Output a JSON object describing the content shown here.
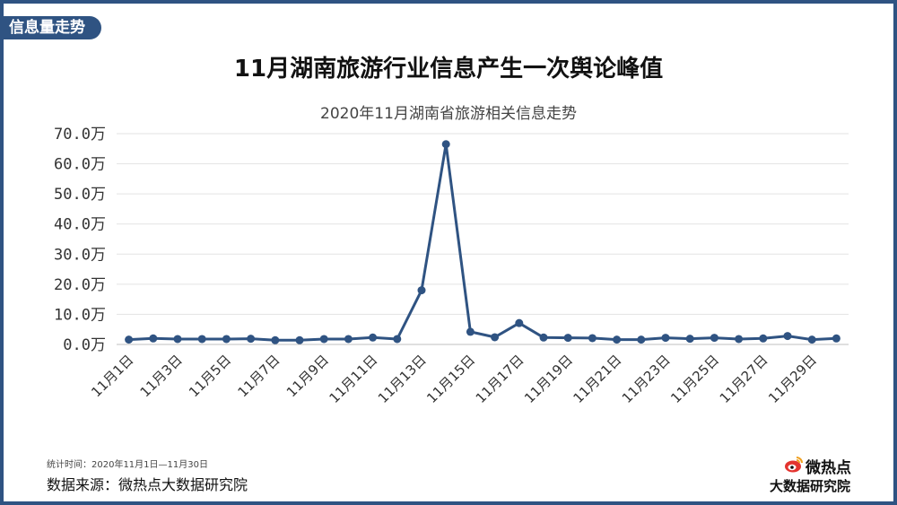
{
  "section_tag": "信息量走势",
  "main_title": "11月湖南旅游行业信息产生一次舆论峰值",
  "chart_data": {
    "type": "line",
    "title": "2020年11月湖南省旅游相关信息走势",
    "xlabel": "",
    "ylabel": "",
    "categories": [
      "11月1日",
      "11月2日",
      "11月3日",
      "11月4日",
      "11月5日",
      "11月6日",
      "11月7日",
      "11月8日",
      "11月9日",
      "11月10日",
      "11月11日",
      "11月12日",
      "11月13日",
      "11月14日",
      "11月15日",
      "11月16日",
      "11月17日",
      "11月18日",
      "11月19日",
      "11月20日",
      "11月21日",
      "11月22日",
      "11月23日",
      "11月24日",
      "11月25日",
      "11月26日",
      "11月27日",
      "11月28日",
      "11月29日",
      "11月30日"
    ],
    "x_tick_labels": [
      "11月1日",
      "11月3日",
      "11月5日",
      "11月7日",
      "11月9日",
      "11月11日",
      "11月13日",
      "11月15日",
      "11月17日",
      "11月19日",
      "11月21日",
      "11月23日",
      "11月25日",
      "11月27日",
      "11月29日"
    ],
    "y_tick_labels": [
      "0.0万",
      "10.0万",
      "20.0万",
      "30.0万",
      "40.0万",
      "50.0万",
      "60.0万",
      "70.0万"
    ],
    "series": [
      {
        "values": [
          1.6,
          2.0,
          1.8,
          1.8,
          1.8,
          1.9,
          1.4,
          1.4,
          1.8,
          1.8,
          2.3,
          1.8,
          18.0,
          66.5,
          4.2,
          2.4,
          7.1,
          2.3,
          2.2,
          2.1,
          1.6,
          1.6,
          2.2,
          1.9,
          2.2,
          1.8,
          2.0,
          2.8,
          1.6,
          2.0
        ],
        "color": "#2f5382"
      }
    ],
    "ylim": [
      0,
      70
    ],
    "unit": "万",
    "grid": true,
    "legend": "none"
  },
  "footer": {
    "stat_time": "统计时间：2020年11月1日—11月30日",
    "source": "数据来源：微热点大数据研究院"
  },
  "logo": {
    "brand": "微热点",
    "institute": "大数据研究院",
    "icon": "weibo-eye-icon"
  }
}
